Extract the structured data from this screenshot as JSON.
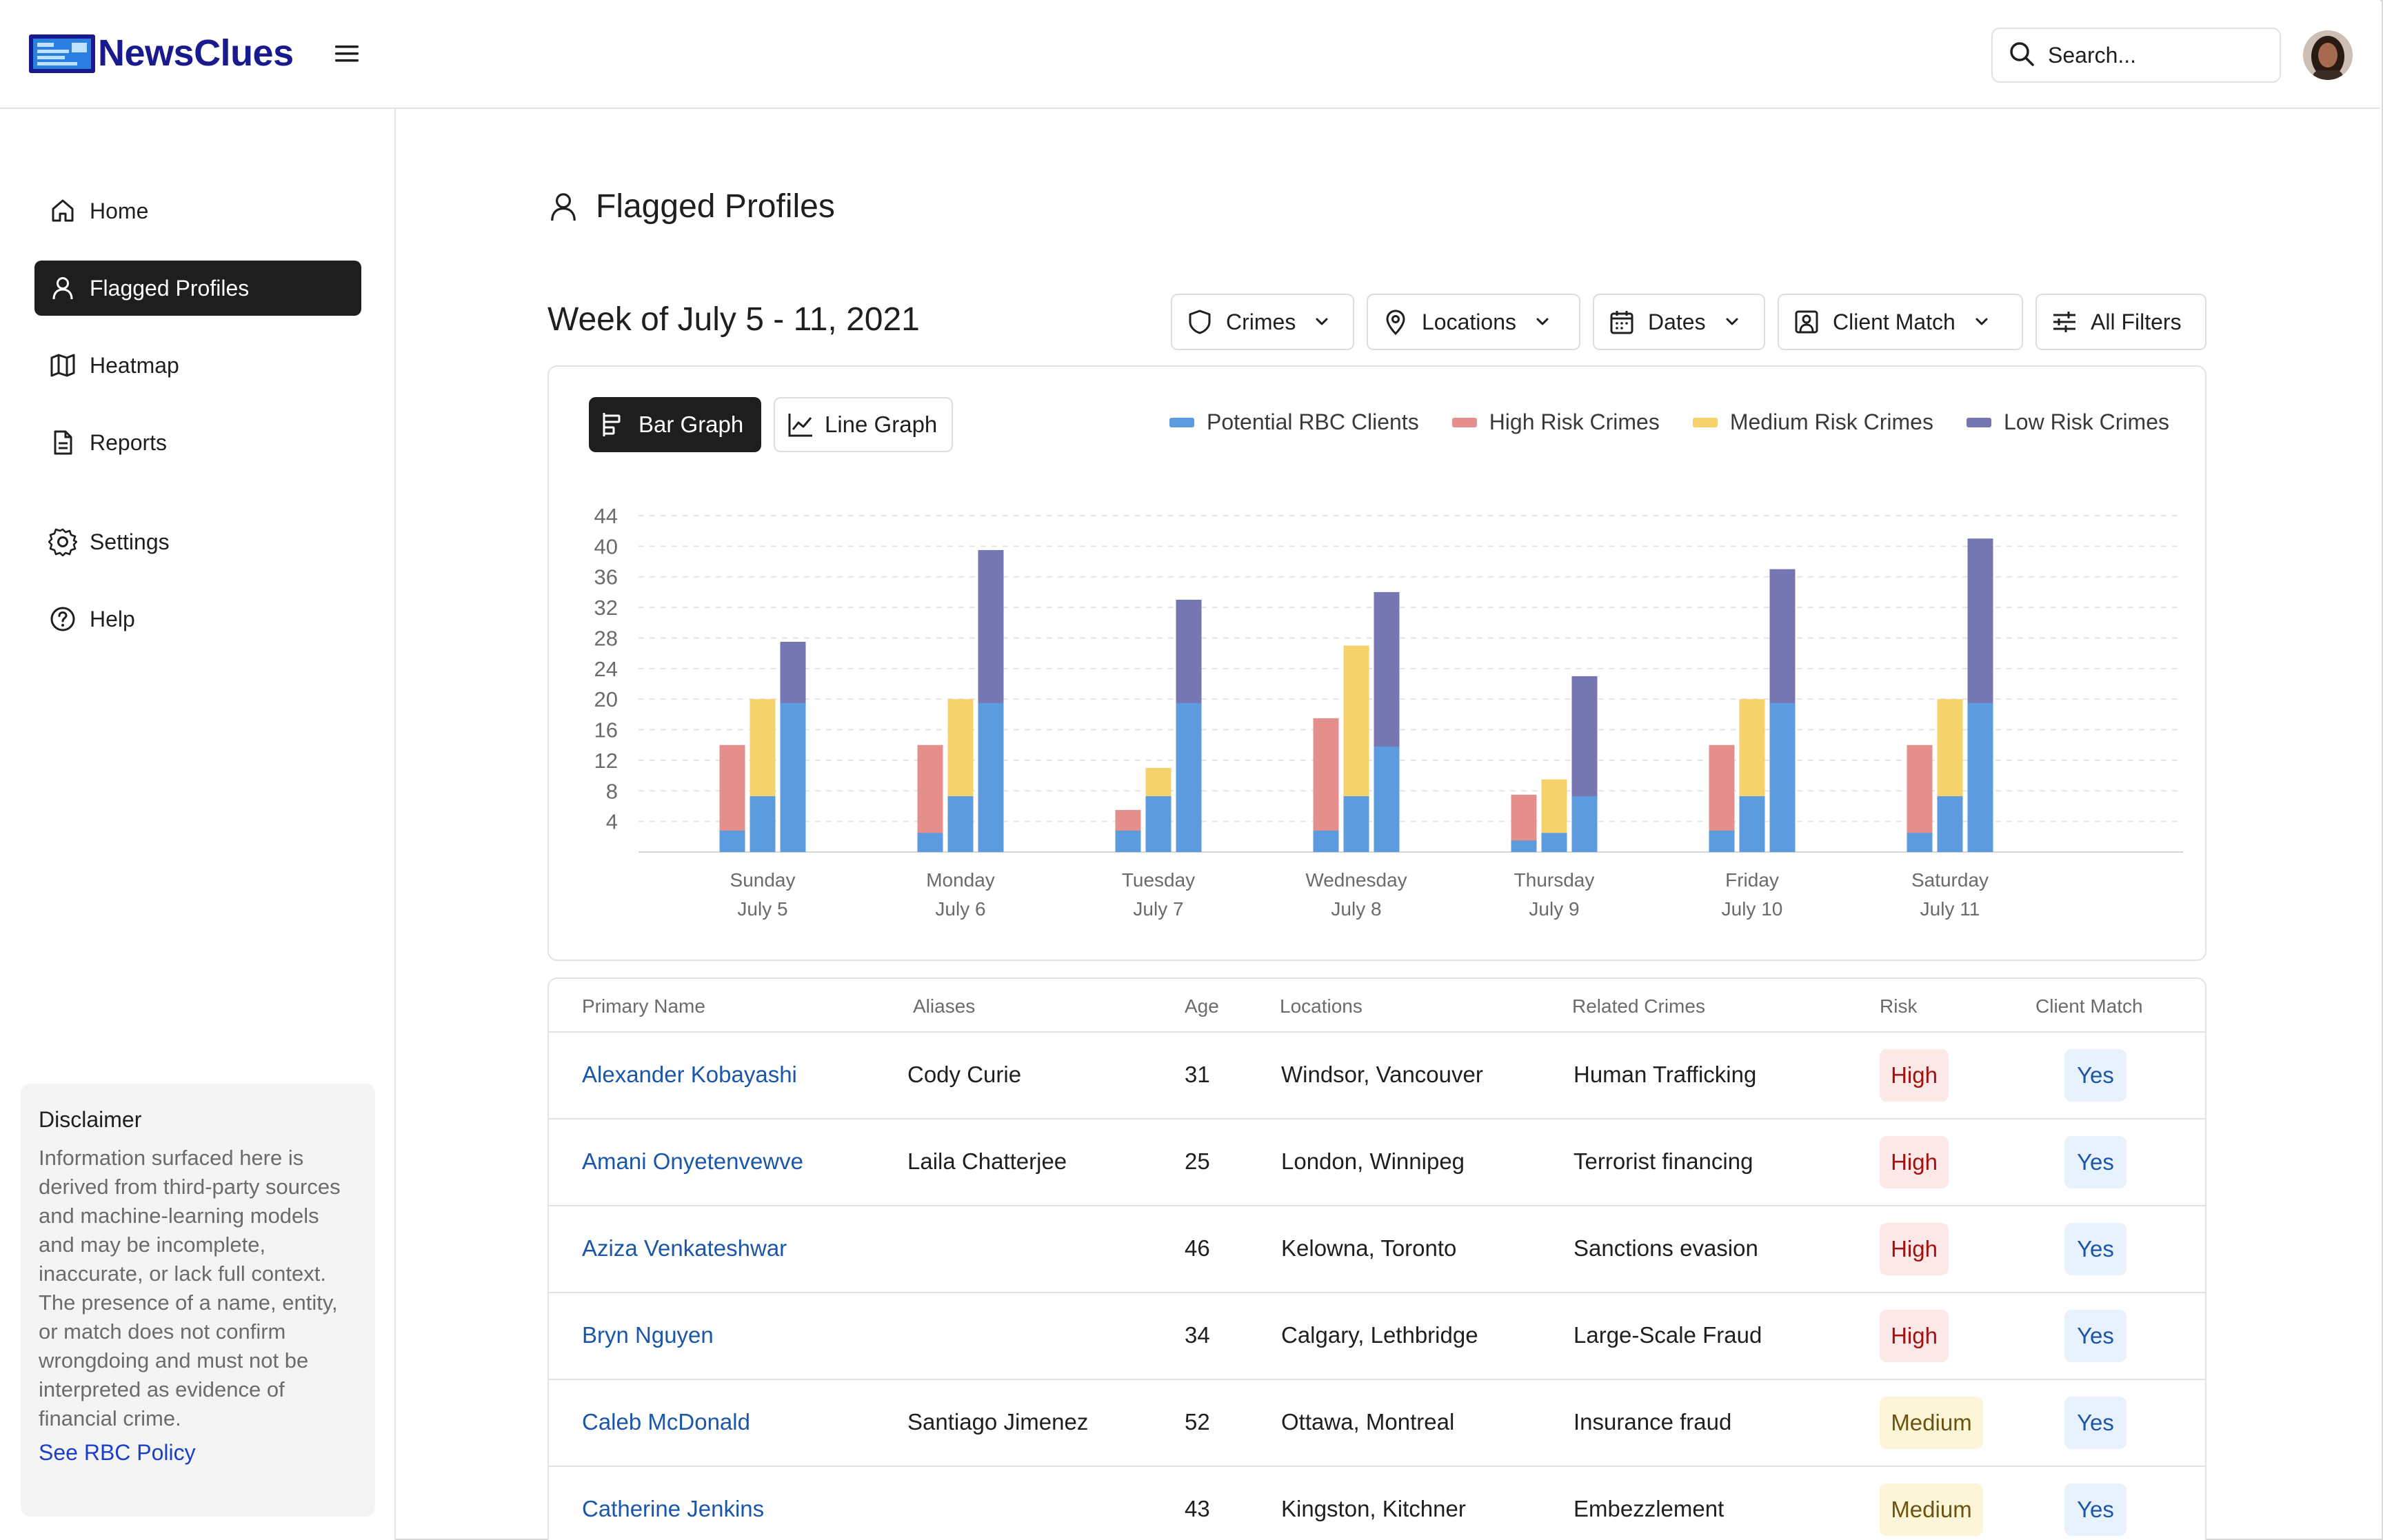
{
  "app": {
    "name": "NewsClues"
  },
  "header": {
    "search_placeholder": "Search..."
  },
  "sidebar": {
    "items": [
      {
        "label": "Home",
        "icon": "home-icon",
        "active": false
      },
      {
        "label": "Flagged Profiles",
        "icon": "user-icon",
        "active": true
      },
      {
        "label": "Heatmap",
        "icon": "map-icon",
        "active": false
      },
      {
        "label": "Reports",
        "icon": "document-icon",
        "active": false
      },
      {
        "label": "Settings",
        "icon": "gear-icon",
        "active": false
      },
      {
        "label": "Help",
        "icon": "help-circle-icon",
        "active": false
      }
    ],
    "disclaimer": {
      "title": "Disclaimer",
      "text": "Information surfaced here is derived from third-party sources and machine-learning models and may be incomplete, inaccurate, or lack full context. The presence of a name, entity, or match does not confirm wrongdoing and must not be interpreted as evidence of financial crime.",
      "link": "See RBC Policy"
    }
  },
  "main": {
    "title": "Flagged Profiles",
    "week_title": "Week of July 5 - 11, 2021",
    "filters": [
      {
        "label": "Crimes",
        "icon": "shield-icon"
      },
      {
        "label": "Locations",
        "icon": "map-pin-icon"
      },
      {
        "label": "Dates",
        "icon": "calendar-icon"
      },
      {
        "label": "Client Match",
        "icon": "user-square-icon"
      },
      {
        "label": "All Filters",
        "icon": "sliders-icon"
      }
    ],
    "graph_toggle": {
      "bar": "Bar Graph",
      "line": "Line Graph",
      "selected": "bar"
    }
  },
  "chart_data": {
    "type": "bar",
    "categories": [
      "Sunday July 5",
      "Monday July 6",
      "Tuesday July 7",
      "Wednesday July 8",
      "Thursday July 9",
      "Friday July 10",
      "Saturday July 11"
    ],
    "category_lines": [
      [
        "Sunday",
        "July 5"
      ],
      [
        "Monday",
        "July 6"
      ],
      [
        "Tuesday",
        "July 7"
      ],
      [
        "Wednesday",
        "July 8"
      ],
      [
        "Thursday",
        "July 9"
      ],
      [
        "Friday",
        "July 10"
      ],
      [
        "Saturday",
        "July 11"
      ]
    ],
    "series": [
      {
        "name": "Potential RBC Clients",
        "color": "#5b9bde"
      },
      {
        "name": "High Risk Crimes",
        "color": "#e58f8c",
        "values": [
          14,
          14,
          5.5,
          17.5,
          7.5,
          14,
          14
        ],
        "rbc_overlap": [
          2.8,
          2.5,
          2.8,
          2.8,
          1.5,
          2.8,
          2.5
        ]
      },
      {
        "name": "Medium Risk Crimes",
        "color": "#f5d26b",
        "values": [
          20,
          20,
          11,
          27,
          9.5,
          20,
          20
        ],
        "rbc_overlap": [
          7.3,
          7.3,
          7.3,
          7.3,
          2.5,
          7.3,
          7.3
        ]
      },
      {
        "name": "Low Risk Crimes",
        "color": "#7676b3",
        "values": [
          27.5,
          39.5,
          33,
          34,
          23,
          37,
          41
        ],
        "rbc_overlap": [
          19.5,
          19.5,
          19.5,
          13.8,
          7.3,
          19.5,
          19.5
        ]
      }
    ],
    "ylim": [
      0,
      44
    ],
    "yticks": [
      4,
      8,
      12,
      16,
      20,
      24,
      28,
      32,
      36,
      40,
      44
    ],
    "grid": true,
    "legend": "top-right"
  },
  "table": {
    "columns": [
      "Primary Name",
      "Aliases",
      "Age",
      "Locations",
      "Related Crimes",
      "Risk",
      "Client Match"
    ],
    "rows": [
      {
        "name": "Alexander Kobayashi",
        "alias": "Cody Curie",
        "age": "31",
        "locations": "Windsor, Vancouver",
        "crime": "Human Trafficking",
        "risk": "High",
        "match": "Yes"
      },
      {
        "name": "Amani Onyetenvewve",
        "alias": "Laila Chatterjee",
        "age": "25",
        "locations": "London, Winnipeg",
        "crime": "Terrorist financing",
        "risk": "High",
        "match": "Yes"
      },
      {
        "name": "Aziza Venkateshwar",
        "alias": "",
        "age": "46",
        "locations": "Kelowna, Toronto",
        "crime": "Sanctions evasion",
        "risk": "High",
        "match": "Yes"
      },
      {
        "name": "Bryn Nguyen",
        "alias": "",
        "age": "34",
        "locations": "Calgary, Lethbridge",
        "crime": "Large-Scale Fraud",
        "risk": "High",
        "match": "Yes"
      },
      {
        "name": "Caleb McDonald",
        "alias": "Santiago Jimenez",
        "age": "52",
        "locations": "Ottawa, Montreal",
        "crime": "Insurance fraud",
        "risk": "Medium",
        "match": "Yes"
      },
      {
        "name": "Catherine Jenkins",
        "alias": "",
        "age": "43",
        "locations": "Kingston, Kitchner",
        "crime": "Embezzlement",
        "risk": "Medium",
        "match": "Yes"
      }
    ]
  }
}
